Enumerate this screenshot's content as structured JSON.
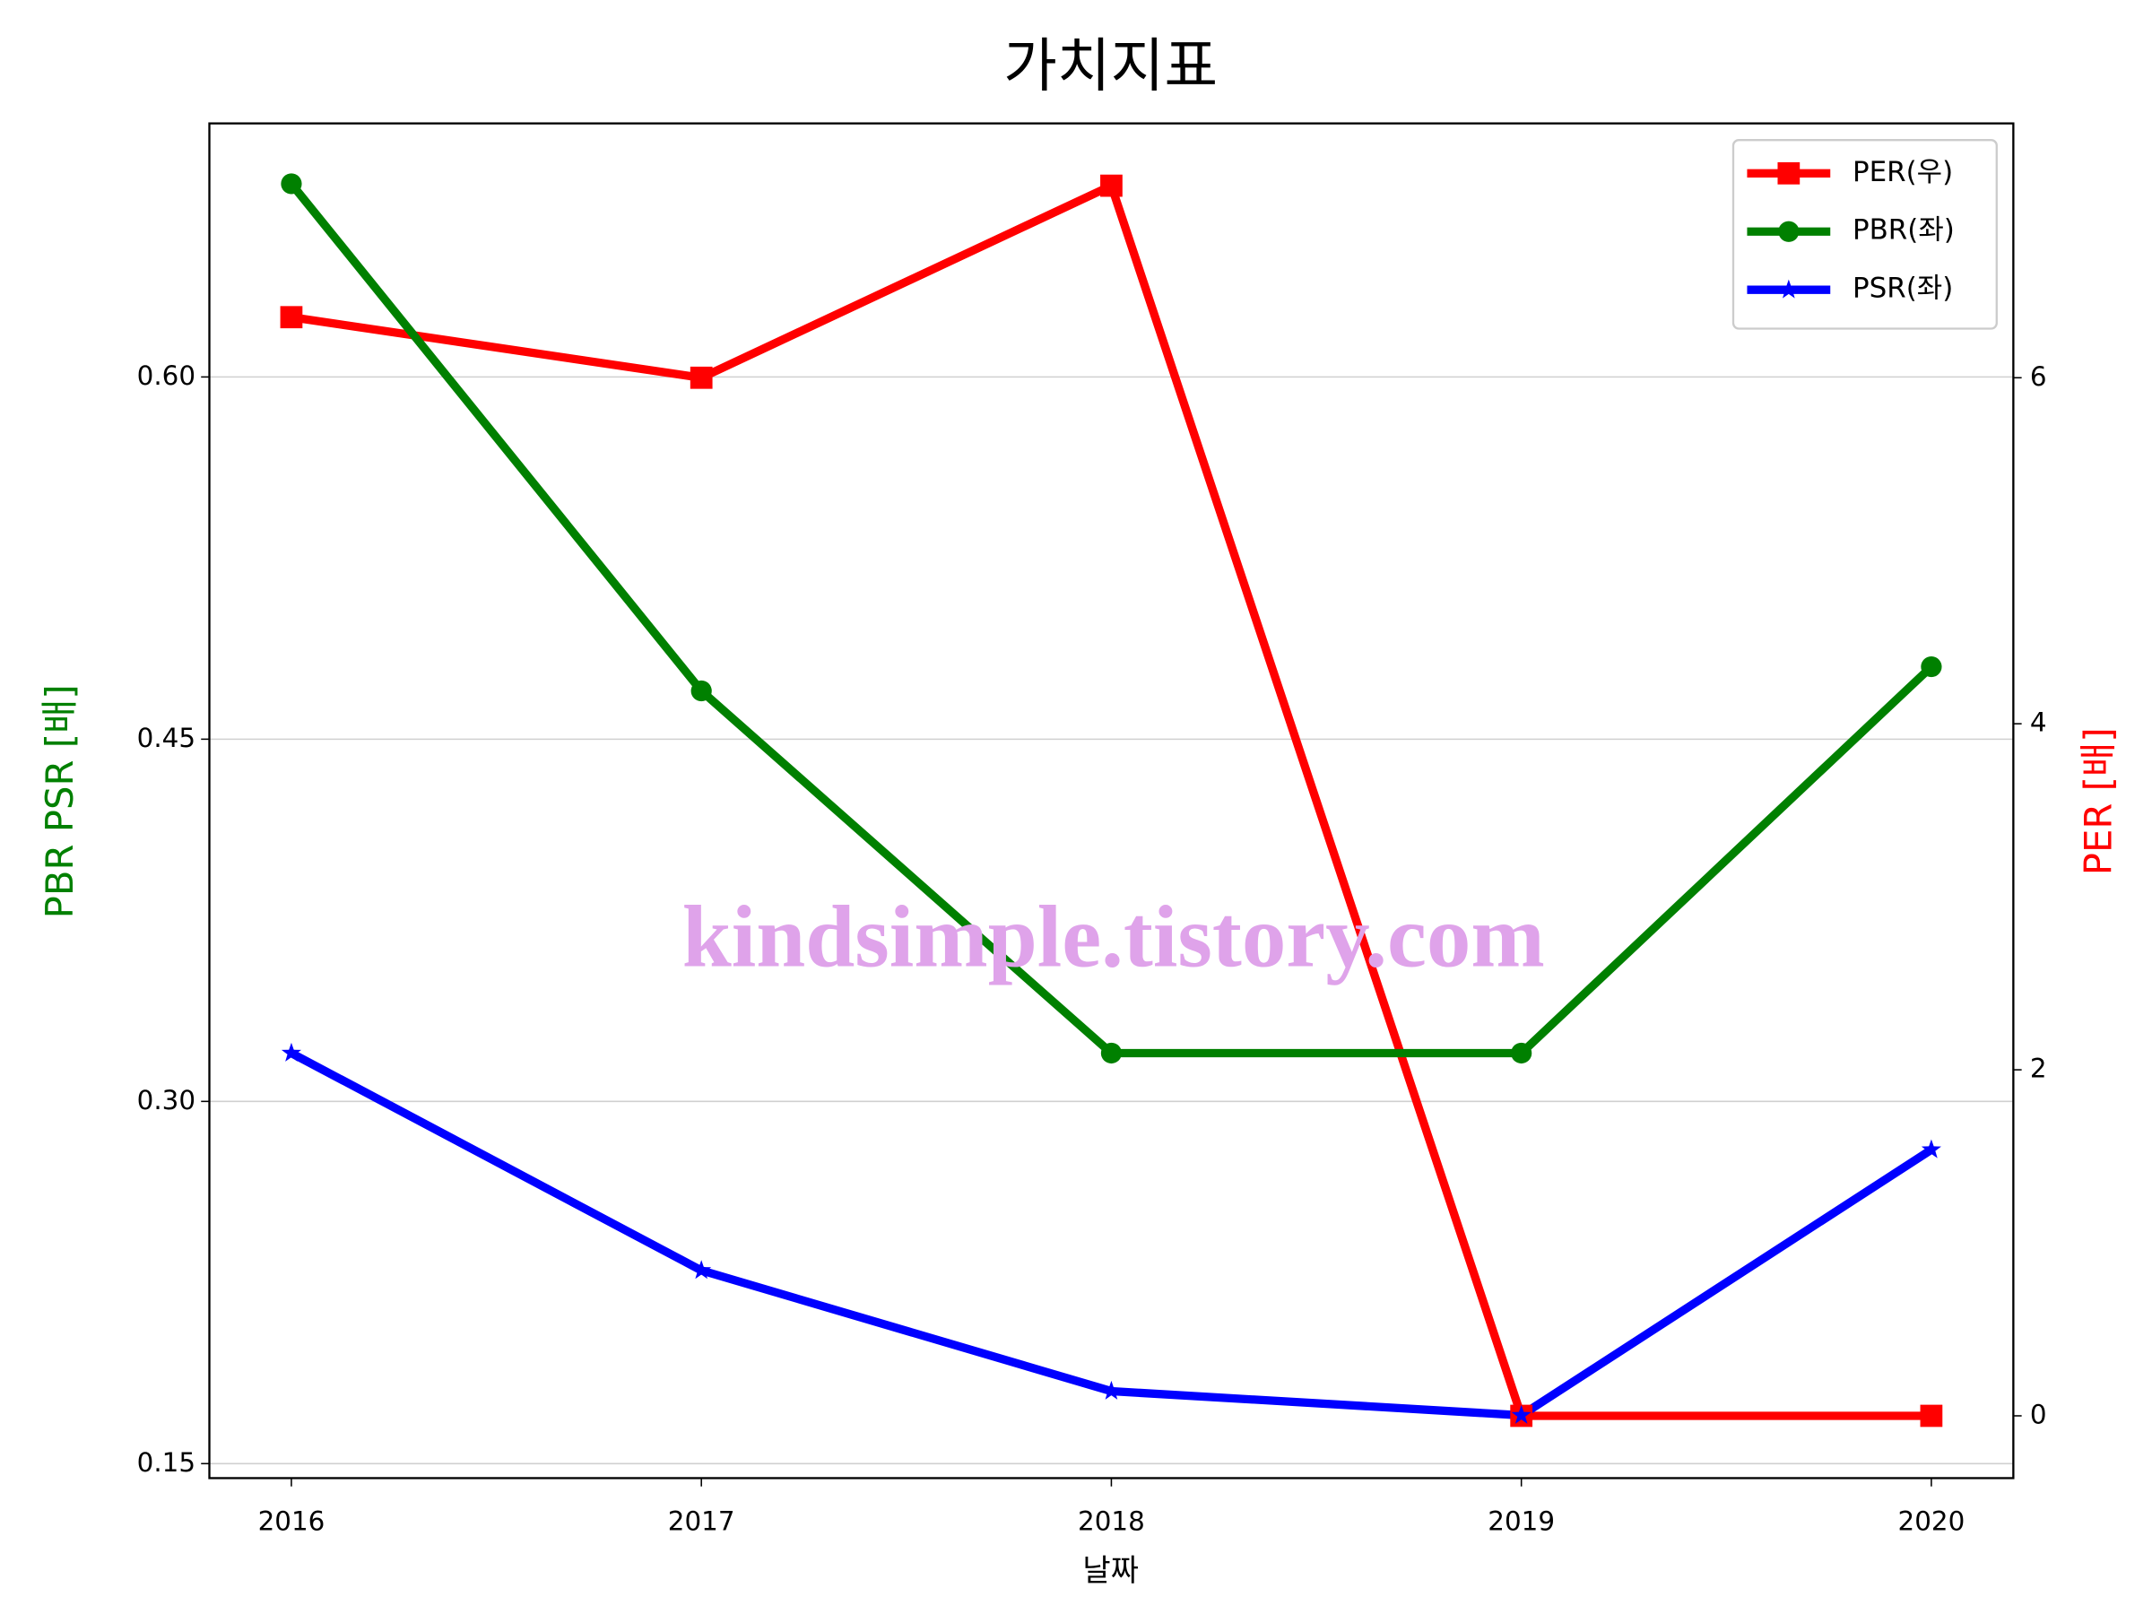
{
  "chart_data": {
    "type": "line",
    "title": "가치지표",
    "x_label": "날짜",
    "y_label": "PBR PSR [배]",
    "y2_label": "PER [배]",
    "x": [
      2016,
      2017,
      2018,
      2019,
      2020
    ],
    "xlim": [
      2015.8,
      2020.2
    ],
    "xticks": [
      2016,
      2017,
      2018,
      2019,
      2020
    ],
    "ylim": [
      0.144,
      0.705
    ],
    "yticks": [
      0.15,
      {
        "value": 0.3,
        "label": "0.30"
      },
      0.45,
      {
        "value": 0.6,
        "label": "0.60"
      }
    ],
    "y2lim": [
      -0.36,
      7.47
    ],
    "y2ticks": [
      0,
      2,
      4,
      6
    ],
    "grid": true,
    "legend": "upper right",
    "watermark": "kindsimple.tistory.com",
    "series": [
      {
        "name": "PER(우)",
        "color": "#ff0000",
        "marker": "square",
        "axis": "y2",
        "values": [
          6.35,
          6.0,
          7.11,
          0,
          0
        ]
      },
      {
        "name": "PBR(좌)",
        "color": "#008000",
        "marker": "circle",
        "values": [
          0.68,
          0.47,
          0.32,
          0.32,
          0.48
        ]
      },
      {
        "name": "PSR(좌)",
        "color": "#0000ff",
        "marker": "star",
        "values": [
          0.32,
          0.23,
          0.18,
          0.17,
          0.28
        ]
      }
    ]
  }
}
